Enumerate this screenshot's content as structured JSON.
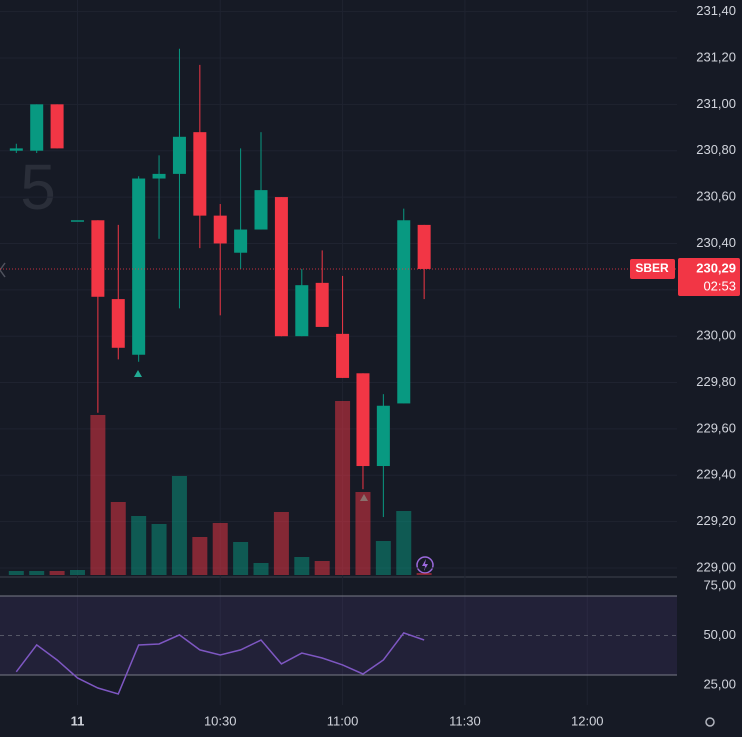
{
  "chart_data": {
    "type": "candlestick",
    "symbol": "SBER",
    "interval": "5",
    "x": [
      "09:40",
      "09:45",
      "09:50",
      "09:55",
      "10:00",
      "10:05",
      "10:10",
      "10:15",
      "10:20",
      "10:25",
      "10:30",
      "10:35",
      "10:40",
      "10:45",
      "10:50",
      "10:55",
      "11:00",
      "11:05",
      "11:10",
      "11:15",
      "11:20"
    ],
    "open": [
      230.8,
      230.8,
      231.0,
      230.5,
      230.5,
      230.16,
      229.92,
      230.68,
      230.7,
      230.88,
      230.52,
      230.36,
      230.46,
      230.6,
      230.0,
      230.23,
      230.01,
      229.84,
      229.44,
      229.71,
      230.48
    ],
    "high": [
      230.83,
      231.0,
      231.0,
      230.5,
      230.5,
      230.48,
      230.69,
      230.78,
      231.24,
      231.17,
      230.57,
      230.81,
      230.88,
      230.6,
      230.29,
      230.37,
      230.26,
      229.84,
      229.75,
      230.55,
      230.48
    ],
    "low": [
      230.79,
      230.79,
      230.81,
      230.5,
      229.67,
      229.9,
      229.89,
      230.42,
      230.12,
      230.38,
      230.09,
      230.29,
      230.46,
      230.0,
      230.0,
      230.04,
      229.82,
      229.34,
      229.22,
      229.71,
      230.16
    ],
    "close": [
      230.81,
      231.0,
      230.81,
      230.5,
      230.17,
      229.95,
      230.68,
      230.7,
      230.86,
      230.52,
      230.4,
      230.46,
      230.63,
      230.0,
      230.22,
      230.04,
      229.82,
      229.44,
      229.7,
      230.5,
      230.29
    ],
    "volume": [
      4,
      4,
      4,
      5,
      160,
      73,
      59,
      51,
      99,
      38,
      52,
      33,
      12,
      63,
      18,
      14,
      174,
      83,
      34,
      64,
      2
    ],
    "rsi": [
      31.6,
      45.2,
      37.6,
      28.5,
      23.4,
      20.4,
      45.2,
      45.7,
      50.3,
      42.7,
      40.1,
      42.7,
      47.7,
      35.6,
      41.1,
      38.6,
      35.1,
      30.5,
      37.6,
      51.3,
      47.7
    ],
    "up_color": "#089981",
    "down_color": "#f23645",
    "rsi_color": "#7e57c2",
    "xlim": [
      "09:36",
      "12:22"
    ],
    "xticks": [
      {
        "value": "09:55",
        "label": "11"
      },
      "10:30",
      "11:00",
      "11:30",
      "12:00"
    ],
    "ylim": [
      228.97,
      231.45
    ],
    "yticks": [
      {
        "value": 229.0,
        "label": "229,00"
      },
      {
        "value": 229.2,
        "label": "229,20"
      },
      {
        "value": 229.4,
        "label": "229,40"
      },
      {
        "value": 229.6,
        "label": "229,60"
      },
      {
        "value": 229.8,
        "label": "229,80"
      },
      {
        "value": 230.0,
        "label": "230,00"
      },
      {
        "value": 230.2,
        "label": "230,20"
      },
      {
        "value": 230.4,
        "label": "230,40"
      },
      {
        "value": 230.6,
        "label": "230,60"
      },
      {
        "value": 230.8,
        "label": "230,80"
      },
      {
        "value": 231.0,
        "label": "231,00"
      },
      {
        "value": 231.2,
        "label": "231,20"
      },
      {
        "value": 231.4,
        "label": "231,40"
      }
    ],
    "volume_lim": [
      0,
      575
    ],
    "rsi_lim": [
      14.8,
      79.1
    ],
    "rsi_ticks": [
      {
        "value": 75,
        "label": "75,00"
      },
      {
        "value": 50,
        "label": "50,00"
      },
      {
        "value": 25,
        "label": "25,00"
      }
    ],
    "rsi_bands": [
      70,
      30
    ],
    "rsi_mid": 50,
    "last_price": {
      "value": 230.29,
      "label": "230,29"
    },
    "countdown": "02:53",
    "grid": true
  }
}
